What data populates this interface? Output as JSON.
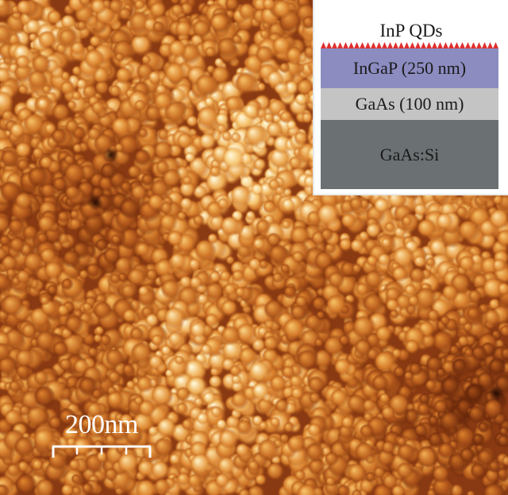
{
  "inset": {
    "top_label": "InP QDs",
    "layers": [
      {
        "label": "InGaP (250 nm)",
        "color": "#8c8cc1"
      },
      {
        "label": "GaAs (100 nm)",
        "color": "#c4c4c4"
      },
      {
        "label": "GaAs:Si",
        "color": "#6b7072"
      }
    ],
    "dot_color": "#e03030"
  },
  "scale_bar": {
    "label": "200nm"
  },
  "colors": {
    "afm_dark": "#6a2a0c",
    "afm_mid": "#c36a22",
    "afm_light": "#fff0c0"
  }
}
